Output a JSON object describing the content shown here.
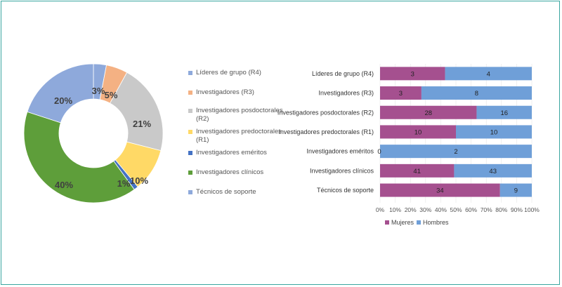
{
  "chart_data": [
    {
      "type": "pie",
      "variant": "donut",
      "slices": [
        {
          "label": "Líderes de grupo (R4)",
          "value": 3,
          "label_text": "3%",
          "color": "#8ea9db"
        },
        {
          "label": "Investigadores (R3)",
          "value": 5,
          "label_text": "5%",
          "color": "#f4b183"
        },
        {
          "label": "Investigadores posdoctorales (R2)",
          "value": 21,
          "label_text": "21%",
          "color": "#c9c9c9"
        },
        {
          "label": "Investigadores predoctorales (R1)",
          "value": 10,
          "label_text": "10%",
          "color": "#ffd966"
        },
        {
          "label": "Investigadores eméritos",
          "value": 1,
          "label_text": "1%",
          "color": "#4472c4"
        },
        {
          "label": "Investigadores clínicos",
          "value": 40,
          "label_text": "40%",
          "color": "#5e9e3a"
        },
        {
          "label": "Técnicos de soporte",
          "value": 20,
          "label_text": "20%",
          "color": "#8ea9db"
        }
      ],
      "legend_placement": "right"
    },
    {
      "type": "bar",
      "orientation": "horizontal",
      "stacked_percent": true,
      "categories": [
        "Líderes de grupo (R4)",
        "Investigadores (R3)",
        "Investigadores posdoctorales (R2)",
        "Investigadores predoctorales (R1)",
        "Investigadores eméritos",
        "Investigadores clínicos",
        "Técnicos de soporte"
      ],
      "series": [
        {
          "name": "Mujeres",
          "values": [
            3,
            3,
            28,
            10,
            0,
            41,
            34
          ],
          "color": "#a5508f"
        },
        {
          "name": "Hombres",
          "values": [
            4,
            8,
            16,
            10,
            2,
            43,
            9
          ],
          "color": "#6f9fd8"
        }
      ],
      "xticks": [
        "0%",
        "10%",
        "20%",
        "30%",
        "40%",
        "50%",
        "60%",
        "70%",
        "80%",
        "90%",
        "100%"
      ],
      "xlim": [
        0,
        100
      ],
      "legend_placement": "bottom"
    }
  ]
}
